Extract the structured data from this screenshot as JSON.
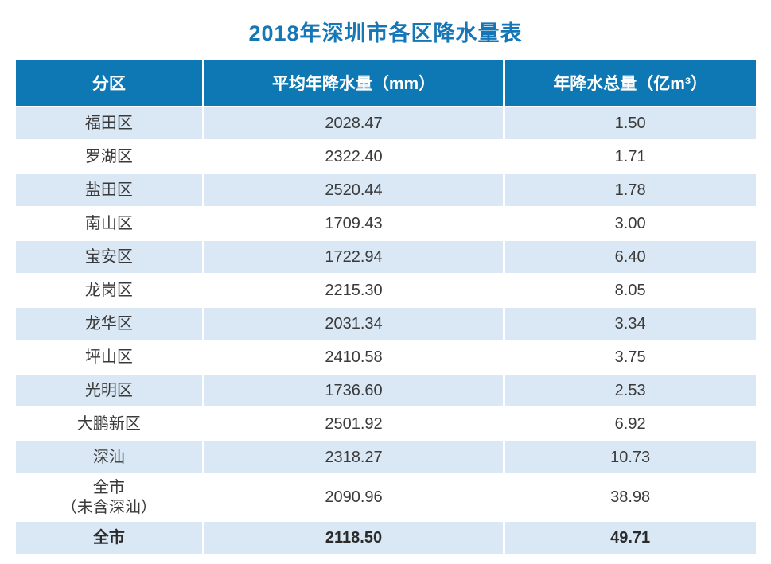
{
  "title": "2018年深圳市各区降水量表",
  "table": {
    "headers": {
      "district": "分区",
      "avg": "平均年降水量（mm）",
      "total": "年降水总量（亿m³）"
    },
    "rows": [
      {
        "district": "福田区",
        "avg": "2028.47",
        "total": "1.50"
      },
      {
        "district": "罗湖区",
        "avg": "2322.40",
        "total": "1.71"
      },
      {
        "district": "盐田区",
        "avg": "2520.44",
        "total": "1.78"
      },
      {
        "district": "南山区",
        "avg": "1709.43",
        "total": "3.00"
      },
      {
        "district": "宝安区",
        "avg": "1722.94",
        "total": "6.40"
      },
      {
        "district": "龙岗区",
        "avg": "2215.30",
        "total": "8.05"
      },
      {
        "district": "龙华区",
        "avg": "2031.34",
        "total": "3.34"
      },
      {
        "district": "坪山区",
        "avg": "2410.58",
        "total": "3.75"
      },
      {
        "district": "光明区",
        "avg": "1736.60",
        "total": "2.53"
      },
      {
        "district": "大鹏新区",
        "avg": "2501.92",
        "total": "6.92"
      },
      {
        "district": "深汕",
        "avg": "2318.27",
        "total": "10.73"
      },
      {
        "district": "全市\n（未含深汕）",
        "avg": "2090.96",
        "total": "38.98"
      },
      {
        "district": "全市",
        "avg": "2118.50",
        "total": "49.71"
      }
    ]
  },
  "colors": {
    "header_bg": "#0e78b4",
    "row_light_bg": "#d9e8f4",
    "row_white_bg": "#ffffff",
    "title_text": "#1577b5",
    "header_text": "#ffffff",
    "cell_text": "#3a3a3a"
  },
  "chart_data": {
    "type": "table",
    "title": "2018年深圳市各区降水量表",
    "columns": [
      "分区",
      "平均年降水量（mm）",
      "年降水总量（亿m³）"
    ],
    "categories": [
      "福田区",
      "罗湖区",
      "盐田区",
      "南山区",
      "宝安区",
      "龙岗区",
      "龙华区",
      "坪山区",
      "光明区",
      "大鹏新区",
      "深汕",
      "全市（未含深汕）",
      "全市"
    ],
    "series": [
      {
        "name": "平均年降水量（mm）",
        "values": [
          2028.47,
          2322.4,
          2520.44,
          1709.43,
          1722.94,
          2215.3,
          2031.34,
          2410.58,
          1736.6,
          2501.92,
          2318.27,
          2090.96,
          2118.5
        ]
      },
      {
        "name": "年降水总量（亿m³）",
        "values": [
          1.5,
          1.71,
          1.78,
          3.0,
          6.4,
          8.05,
          3.34,
          3.75,
          2.53,
          6.92,
          10.73,
          38.98,
          49.71
        ]
      }
    ]
  }
}
